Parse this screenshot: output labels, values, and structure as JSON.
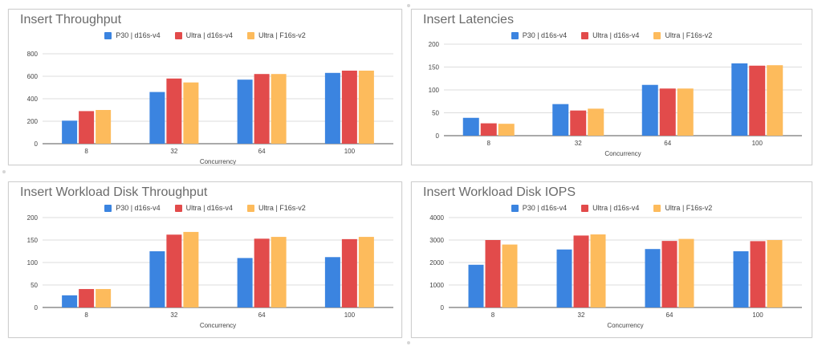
{
  "colors": {
    "series": [
      "#3b84e0",
      "#e24b4b",
      "#fdbb5c"
    ]
  },
  "chart_data": [
    {
      "type": "bar",
      "title": "Insert Throughput",
      "xlabel": "Concurrency",
      "ylabel": "",
      "ylim": [
        0,
        800
      ],
      "yticks": [
        0,
        200,
        400,
        600,
        800
      ],
      "categories": [
        "8",
        "32",
        "64",
        "100"
      ],
      "legend_position": "top",
      "grid": true,
      "series": [
        {
          "name": "P30 | d16s-v4",
          "values": [
            205,
            460,
            570,
            630
          ]
        },
        {
          "name": "Ultra | d16s-v4",
          "values": [
            290,
            580,
            620,
            650
          ]
        },
        {
          "name": "Ultra | F16s-v2",
          "values": [
            300,
            545,
            620,
            650
          ]
        }
      ]
    },
    {
      "type": "bar",
      "title": "Insert Latencies",
      "xlabel": "Concurrency",
      "ylabel": "",
      "ylim": [
        0,
        200
      ],
      "yticks": [
        0,
        50,
        100,
        150,
        200
      ],
      "categories": [
        "8",
        "32",
        "64",
        "100"
      ],
      "legend_position": "top",
      "grid": true,
      "series": [
        {
          "name": "P30 | d16s-v4",
          "values": [
            39,
            69,
            111,
            158
          ]
        },
        {
          "name": "Ultra | d16s-v4",
          "values": [
            27,
            55,
            103,
            153
          ]
        },
        {
          "name": "Ultra | F16s-v2",
          "values": [
            26,
            59,
            103,
            154
          ]
        }
      ]
    },
    {
      "type": "bar",
      "title": "Insert Workload Disk Throughput",
      "xlabel": "Concurrency",
      "ylabel": "",
      "ylim": [
        0,
        200
      ],
      "yticks": [
        0,
        50,
        100,
        150,
        200
      ],
      "categories": [
        "8",
        "32",
        "64",
        "100"
      ],
      "legend_position": "top",
      "grid": true,
      "series": [
        {
          "name": "P30 | d16s-v4",
          "values": [
            27,
            125,
            110,
            112
          ]
        },
        {
          "name": "Ultra | d16s-v4",
          "values": [
            41,
            162,
            153,
            152
          ]
        },
        {
          "name": "Ultra | F16s-v2",
          "values": [
            41,
            168,
            157,
            157
          ]
        }
      ]
    },
    {
      "type": "bar",
      "title": "Insert Workload Disk IOPS",
      "xlabel": "Concurrency",
      "ylabel": "",
      "ylim": [
        0,
        4000
      ],
      "yticks": [
        0,
        1000,
        2000,
        3000,
        4000
      ],
      "categories": [
        "8",
        "32",
        "64",
        "100"
      ],
      "legend_position": "top",
      "grid": true,
      "series": [
        {
          "name": "P30 | d16s-v4",
          "values": [
            1900,
            2580,
            2600,
            2500
          ]
        },
        {
          "name": "Ultra | d16s-v4",
          "values": [
            3000,
            3200,
            2960,
            2950
          ]
        },
        {
          "name": "Ultra | F16s-v2",
          "values": [
            2800,
            3250,
            3050,
            3000
          ]
        }
      ]
    }
  ]
}
